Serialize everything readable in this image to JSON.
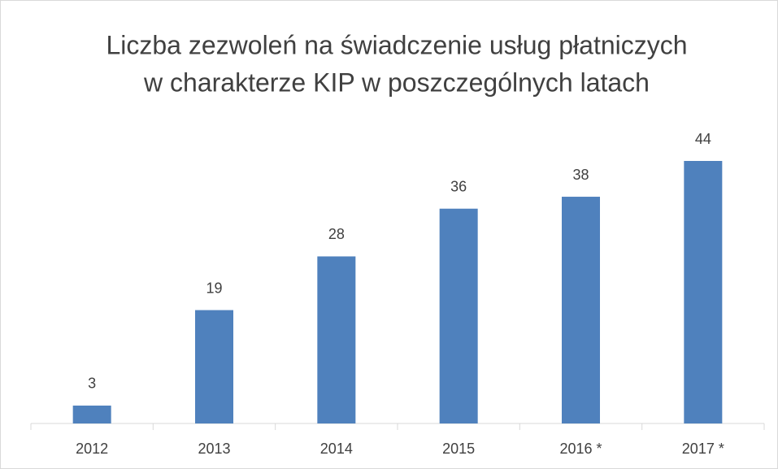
{
  "chart_data": {
    "type": "bar",
    "title": [
      "Liczba zezwoleń na świadczenie usług płatniczych",
      "w charakterze KIP w poszczególnych latach"
    ],
    "categories": [
      "2012",
      "2013",
      "2014",
      "2015",
      "2016 *",
      "2017 *"
    ],
    "values": [
      3,
      19,
      28,
      36,
      38,
      44
    ],
    "color": "#4f81bd"
  }
}
